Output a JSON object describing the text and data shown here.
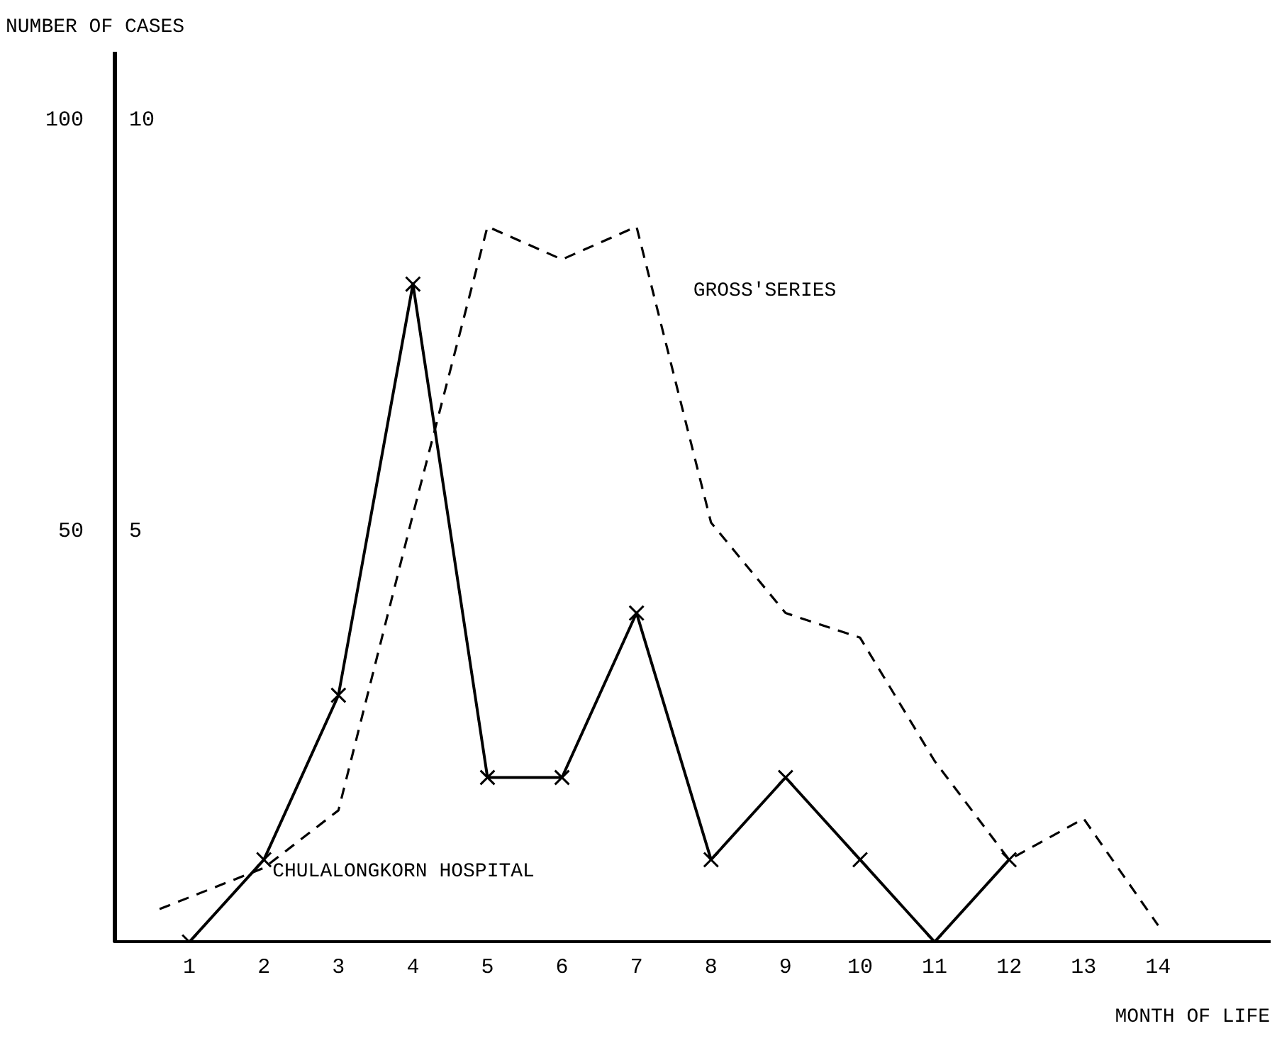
{
  "chart_data": {
    "type": "line",
    "ylabel": "NUMBER OF CASES",
    "xlabel": "MONTH OF LIFE",
    "xlim": [
      0,
      15.5
    ],
    "xticks": [
      1,
      2,
      3,
      4,
      5,
      6,
      7,
      8,
      9,
      10,
      11,
      12,
      13,
      14
    ],
    "ylim": [
      0,
      108
    ],
    "yticks": [
      50,
      100
    ],
    "y2lim": [
      0,
      10.8
    ],
    "y2ticks": [
      5,
      10
    ],
    "grid": false,
    "legend": false,
    "series": [
      {
        "name": "GROSS'SERIES",
        "color": "#000000",
        "axis": "y",
        "line_style": "dashed",
        "marker": "none",
        "x": [
          0.6,
          2,
          3,
          4,
          5,
          6,
          7,
          8,
          9,
          10,
          11,
          12,
          13,
          14
        ],
        "values": [
          4,
          9,
          16,
          52,
          87,
          83,
          87,
          51,
          40,
          37,
          22,
          10,
          15,
          2
        ]
      },
      {
        "name": "CHULALONGKORN HOSPITAL",
        "color": "#000000",
        "axis": "y2",
        "line_style": "solid",
        "marker": "cross",
        "x": [
          1,
          2,
          3,
          4,
          5,
          6,
          7,
          8,
          9,
          10,
          11,
          12
        ],
        "values": [
          0,
          1,
          3,
          8,
          2,
          2,
          4,
          1,
          2,
          1,
          0,
          1
        ]
      }
    ]
  }
}
